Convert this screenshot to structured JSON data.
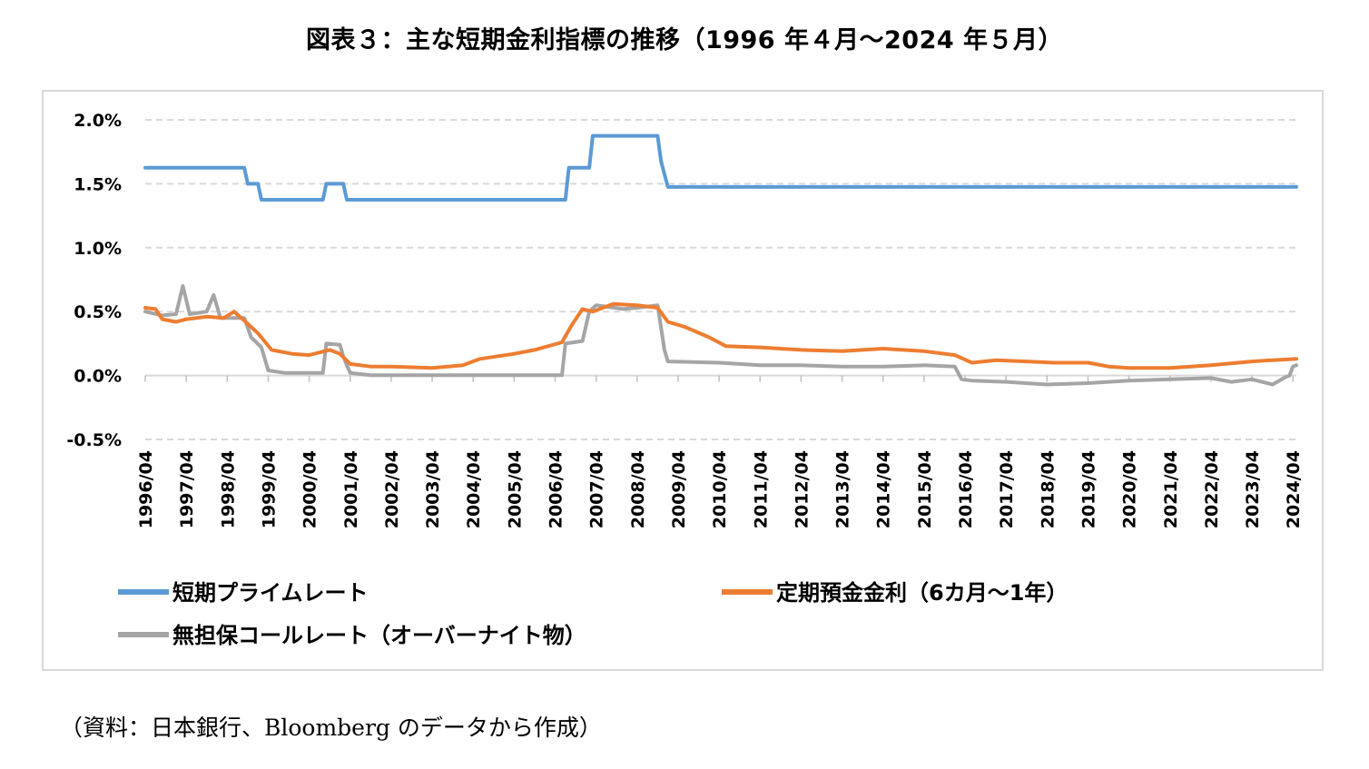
{
  "title": "図表３：主な短期金利指標の推移（1996 年４月～2024 年５月）",
  "source": "（資料：日本銀行、Bloomberg のデータから作成）",
  "chart_data": {
    "type": "line",
    "title": "図表３：主な短期金利指標の推移（1996 年４月～2024 年５月）",
    "xlabel": "",
    "ylabel": "",
    "ylim": [
      -0.5,
      2.0
    ],
    "yticks": [
      2.0,
      1.5,
      1.0,
      0.5,
      0.0,
      -0.5
    ],
    "ytick_labels": [
      "2.0%",
      "1.5%",
      "1.0%",
      "0.5%",
      "0.0%",
      "-0.5%"
    ],
    "xlim": [
      "1996-04",
      "2024-05"
    ],
    "xtick_labels": [
      "1996/04",
      "1997/04",
      "1998/04",
      "1999/04",
      "2000/04",
      "2001/04",
      "2002/04",
      "2003/04",
      "2004/04",
      "2005/04",
      "2006/04",
      "2007/04",
      "2008/04",
      "2009/04",
      "2010/04",
      "2011/04",
      "2012/04",
      "2013/04",
      "2014/04",
      "2015/04",
      "2016/04",
      "2017/04",
      "2018/04",
      "2019/04",
      "2020/04",
      "2021/04",
      "2022/04",
      "2023/04",
      "2024/04"
    ],
    "grid": true,
    "legend_position": "bottom",
    "series": [
      {
        "name": "短期プライムレート",
        "color": "#5b9bd5",
        "points": [
          [
            "1996-04",
            1.625
          ],
          [
            "1998-09",
            1.625
          ],
          [
            "1998-10",
            1.5
          ],
          [
            "1999-01",
            1.5
          ],
          [
            "1999-02",
            1.375
          ],
          [
            "2000-08",
            1.375
          ],
          [
            "2000-09",
            1.5
          ],
          [
            "2001-02",
            1.5
          ],
          [
            "2001-03",
            1.375
          ],
          [
            "2006-07",
            1.375
          ],
          [
            "2006-08",
            1.625
          ],
          [
            "2007-02",
            1.625
          ],
          [
            "2007-03",
            1.875
          ],
          [
            "2008-10",
            1.875
          ],
          [
            "2008-11",
            1.675
          ],
          [
            "2009-01",
            1.475
          ],
          [
            "2024-05",
            1.475
          ]
        ]
      },
      {
        "name": "定期預金金利（6カ月～1年）",
        "color": "#ed7d31",
        "points": [
          [
            "1996-04",
            0.53
          ],
          [
            "1996-07",
            0.52
          ],
          [
            "1996-09",
            0.44
          ],
          [
            "1997-01",
            0.42
          ],
          [
            "1997-04",
            0.44
          ],
          [
            "1997-10",
            0.46
          ],
          [
            "1998-03",
            0.45
          ],
          [
            "1998-06",
            0.5
          ],
          [
            "1998-09",
            0.43
          ],
          [
            "1999-01",
            0.33
          ],
          [
            "1999-05",
            0.2
          ],
          [
            "1999-11",
            0.17
          ],
          [
            "2000-04",
            0.16
          ],
          [
            "2000-10",
            0.2
          ],
          [
            "2001-01",
            0.17
          ],
          [
            "2001-04",
            0.09
          ],
          [
            "2001-10",
            0.07
          ],
          [
            "2002-04",
            0.07
          ],
          [
            "2003-04",
            0.06
          ],
          [
            "2004-01",
            0.08
          ],
          [
            "2004-06",
            0.13
          ],
          [
            "2005-04",
            0.17
          ],
          [
            "2005-10",
            0.2
          ],
          [
            "2006-06",
            0.26
          ],
          [
            "2006-09",
            0.4
          ],
          [
            "2006-12",
            0.52
          ],
          [
            "2007-03",
            0.5
          ],
          [
            "2007-09",
            0.56
          ],
          [
            "2008-04",
            0.55
          ],
          [
            "2008-10",
            0.53
          ],
          [
            "2009-01",
            0.42
          ],
          [
            "2009-06",
            0.38
          ],
          [
            "2010-01",
            0.3
          ],
          [
            "2010-06",
            0.23
          ],
          [
            "2011-04",
            0.22
          ],
          [
            "2012-04",
            0.2
          ],
          [
            "2013-04",
            0.19
          ],
          [
            "2014-04",
            0.21
          ],
          [
            "2015-04",
            0.19
          ],
          [
            "2016-01",
            0.16
          ],
          [
            "2016-06",
            0.1
          ],
          [
            "2017-01",
            0.12
          ],
          [
            "2017-10",
            0.11
          ],
          [
            "2018-06",
            0.1
          ],
          [
            "2019-04",
            0.1
          ],
          [
            "2019-10",
            0.07
          ],
          [
            "2020-04",
            0.06
          ],
          [
            "2021-04",
            0.06
          ],
          [
            "2022-04",
            0.08
          ],
          [
            "2023-04",
            0.11
          ],
          [
            "2023-10",
            0.12
          ],
          [
            "2024-05",
            0.13
          ]
        ]
      },
      {
        "name": "無担保コールレート（オーバーナイト物）",
        "color": "#a5a5a5",
        "points": [
          [
            "1996-04",
            0.5
          ],
          [
            "1996-09",
            0.47
          ],
          [
            "1997-01",
            0.48
          ],
          [
            "1997-03",
            0.7
          ],
          [
            "1997-05",
            0.48
          ],
          [
            "1997-10",
            0.5
          ],
          [
            "1997-12",
            0.63
          ],
          [
            "1998-02",
            0.45
          ],
          [
            "1998-09",
            0.45
          ],
          [
            "1998-11",
            0.3
          ],
          [
            "1999-02",
            0.22
          ],
          [
            "1999-04",
            0.04
          ],
          [
            "1999-09",
            0.02
          ],
          [
            "2000-04",
            0.02
          ],
          [
            "2000-08",
            0.02
          ],
          [
            "2000-09",
            0.25
          ],
          [
            "2001-01",
            0.24
          ],
          [
            "2001-02",
            0.15
          ],
          [
            "2001-03",
            0.08
          ],
          [
            "2001-04",
            0.02
          ],
          [
            "2001-10",
            0.002
          ],
          [
            "2006-06",
            0.002
          ],
          [
            "2006-07",
            0.25
          ],
          [
            "2006-12",
            0.27
          ],
          [
            "2007-02",
            0.5
          ],
          [
            "2007-04",
            0.55
          ],
          [
            "2007-12",
            0.52
          ],
          [
            "2008-04",
            0.53
          ],
          [
            "2008-10",
            0.55
          ],
          [
            "2008-12",
            0.2
          ],
          [
            "2009-01",
            0.11
          ],
          [
            "2010-04",
            0.1
          ],
          [
            "2011-04",
            0.08
          ],
          [
            "2012-04",
            0.08
          ],
          [
            "2013-04",
            0.07
          ],
          [
            "2014-04",
            0.07
          ],
          [
            "2015-04",
            0.08
          ],
          [
            "2016-01",
            0.07
          ],
          [
            "2016-03",
            -0.03
          ],
          [
            "2016-06",
            -0.04
          ],
          [
            "2017-04",
            -0.05
          ],
          [
            "2018-04",
            -0.07
          ],
          [
            "2019-04",
            -0.06
          ],
          [
            "2020-04",
            -0.04
          ],
          [
            "2021-04",
            -0.03
          ],
          [
            "2022-04",
            -0.02
          ],
          [
            "2022-10",
            -0.05
          ],
          [
            "2023-04",
            -0.03
          ],
          [
            "2023-10",
            -0.07
          ],
          [
            "2024-02",
            -0.01
          ],
          [
            "2024-03",
            0.0
          ],
          [
            "2024-04",
            0.07
          ],
          [
            "2024-05",
            0.08
          ]
        ]
      }
    ]
  }
}
